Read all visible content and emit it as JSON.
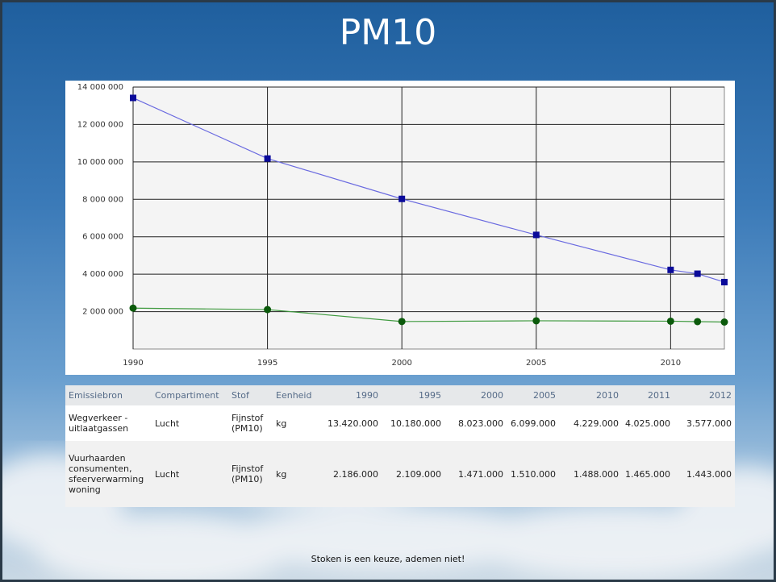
{
  "chart_data": {
    "type": "line",
    "title": "PM10",
    "x": [
      1990,
      1995,
      2000,
      2005,
      2010,
      2011,
      2012
    ],
    "series": [
      {
        "color": "#6a6ae0",
        "marker_color": "#0a0a9a",
        "marker": "square",
        "values": [
          13420000,
          10180000,
          8023000,
          6099000,
          4229000,
          4025000,
          3577000
        ]
      },
      {
        "color": "#3f9a3f",
        "marker_color": "#0b5a0b",
        "marker": "circle",
        "values": [
          2186000,
          2109000,
          1471000,
          1510000,
          1488000,
          1465000,
          1443000
        ]
      }
    ],
    "xlim": [
      1990,
      2012
    ],
    "xticks": [
      1990,
      1995,
      2000,
      2005,
      2010
    ],
    "ylim": [
      0,
      14000000
    ],
    "yticks": [
      {
        "value": 2000000,
        "label": "2 000 000"
      },
      {
        "value": 4000000,
        "label": "4 000 000"
      },
      {
        "value": 6000000,
        "label": "6 000 000"
      },
      {
        "value": 8000000,
        "label": "8 000 000"
      },
      {
        "value": 10000000,
        "label": "10 000 000"
      },
      {
        "value": 12000000,
        "label": "12 000 000"
      },
      {
        "value": 14000000,
        "label": "14 000 000"
      }
    ],
    "grid": true
  },
  "table": {
    "header": [
      "Emissiebron",
      "Compartiment",
      "Stof",
      "Eenheid",
      "1990",
      "1995",
      "2000",
      "2005",
      "2010",
      "2011",
      "2012"
    ],
    "rows": [
      [
        "Wegverkeer - uitlaatgassen",
        "Lucht",
        "Fijnstof (PM10)",
        "kg",
        "13.420.000",
        "10.180.000",
        "8.023.000",
        "6.099.000",
        "4.229.000",
        "4.025.000",
        "3.577.000"
      ],
      [
        "Vuurhaarden consumenten, sfeerverwarming woning",
        "Lucht",
        "Fijnstof (PM10)",
        "kg",
        "2.186.000",
        "2.109.000",
        "1.471.000",
        "1.510.000",
        "1.488.000",
        "1.465.000",
        "1.443.000"
      ]
    ]
  },
  "footer": "Stoken is een keuze, ademen niet!"
}
